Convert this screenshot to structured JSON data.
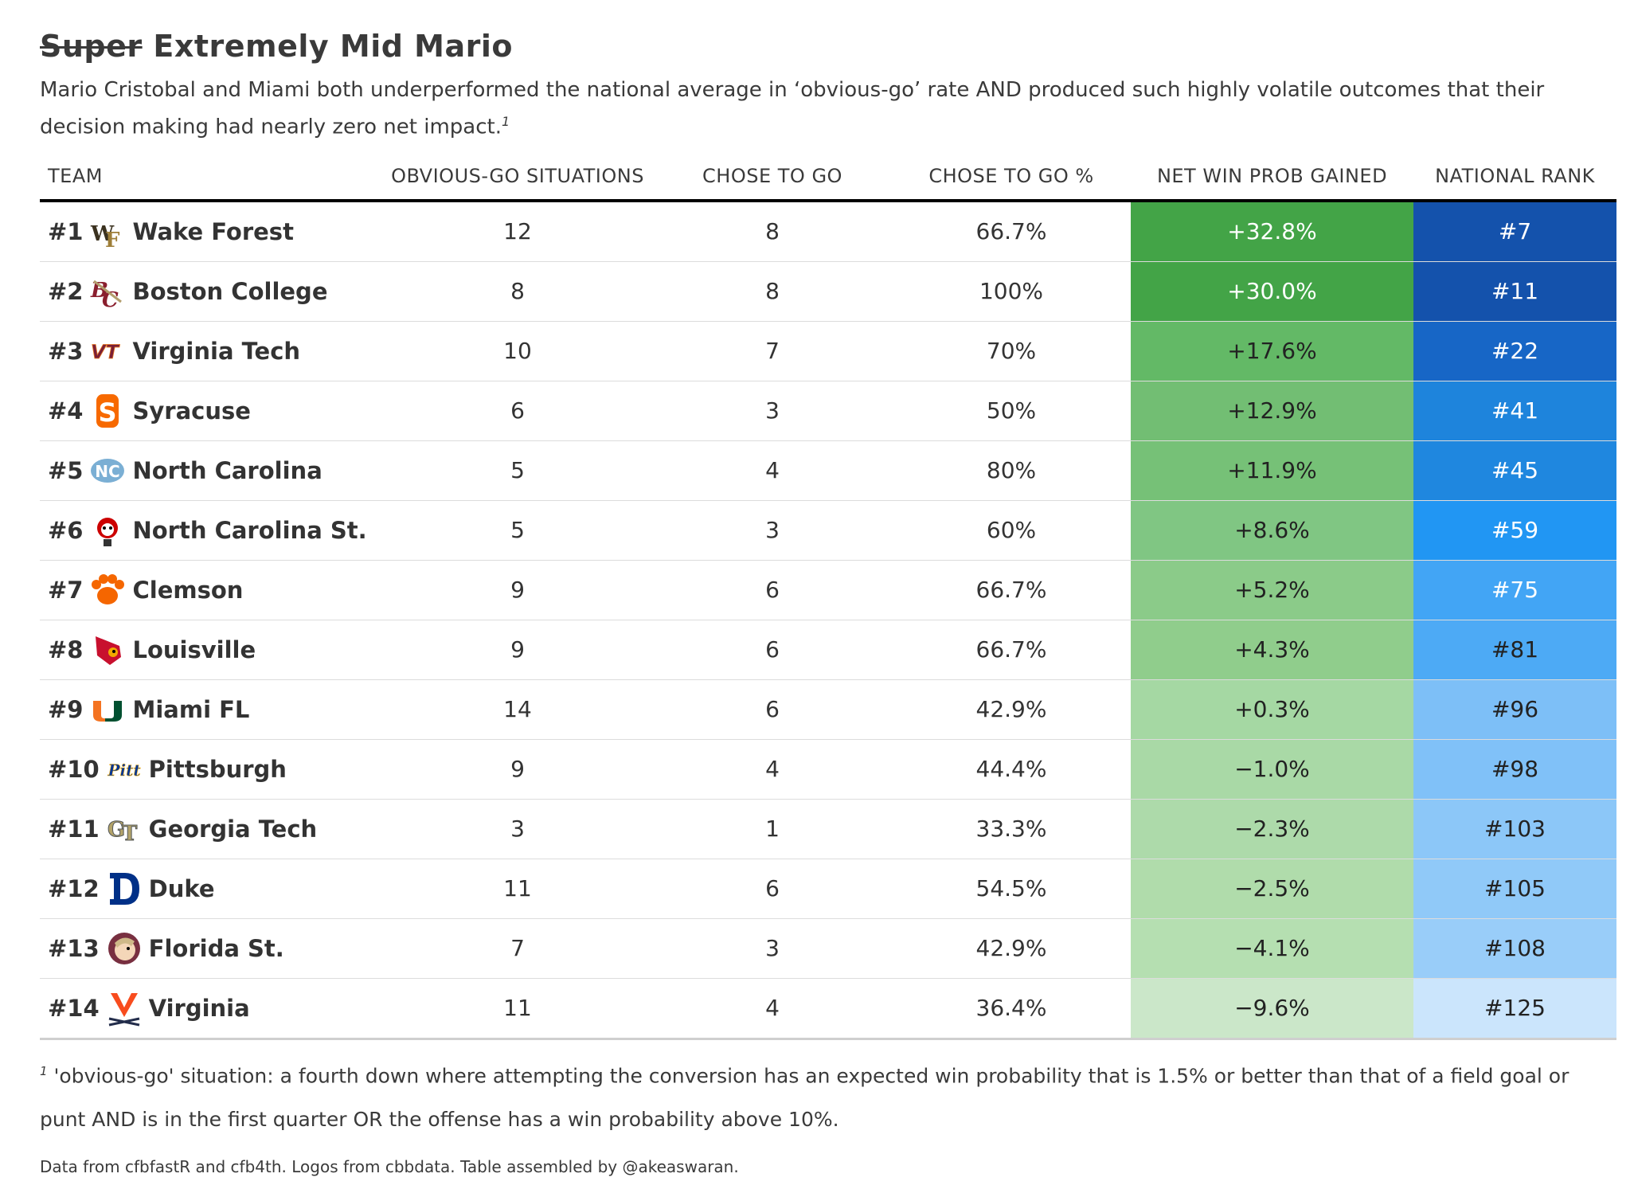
{
  "title": {
    "struck": "Super",
    "main": "Extremely Mid Mario"
  },
  "subtitle": "Mario Cristobal and Miami both underperformed the national average in ‘obvious-go’ rate AND produced such highly volatile outcomes that their decision making had nearly zero net impact.",
  "subtitle_note_mark": "1",
  "chart_data": {
    "type": "table",
    "columns": [
      "TEAM",
      "OBVIOUS-GO SITUATIONS",
      "CHOSE TO GO",
      "CHOSE TO GO %",
      "NET WIN PROB GAINED",
      "NATIONAL RANK"
    ],
    "rows": [
      {
        "rank": "#1",
        "team": "Wake Forest",
        "logo": "wake-forest-logo",
        "situations": "12",
        "went": "8",
        "pct": "66.7%",
        "wp": "+32.8%",
        "wp_value": 32.8,
        "national": "#7",
        "national_value": 7
      },
      {
        "rank": "#2",
        "team": "Boston College",
        "logo": "boston-college-logo",
        "situations": "8",
        "went": "8",
        "pct": "100%",
        "wp": "+30.0%",
        "wp_value": 30.0,
        "national": "#11",
        "national_value": 11
      },
      {
        "rank": "#3",
        "team": "Virginia Tech",
        "logo": "virginia-tech-logo",
        "situations": "10",
        "went": "7",
        "pct": "70%",
        "wp": "+17.6%",
        "wp_value": 17.6,
        "national": "#22",
        "national_value": 22
      },
      {
        "rank": "#4",
        "team": "Syracuse",
        "logo": "syracuse-logo",
        "situations": "6",
        "went": "3",
        "pct": "50%",
        "wp": "+12.9%",
        "wp_value": 12.9,
        "national": "#41",
        "national_value": 41
      },
      {
        "rank": "#5",
        "team": "North Carolina",
        "logo": "north-carolina-logo",
        "situations": "5",
        "went": "4",
        "pct": "80%",
        "wp": "+11.9%",
        "wp_value": 11.9,
        "national": "#45",
        "national_value": 45
      },
      {
        "rank": "#6",
        "team": "North Carolina St.",
        "logo": "nc-state-logo",
        "situations": "5",
        "went": "3",
        "pct": "60%",
        "wp": "+8.6%",
        "wp_value": 8.6,
        "national": "#59",
        "national_value": 59
      },
      {
        "rank": "#7",
        "team": "Clemson",
        "logo": "clemson-logo",
        "situations": "9",
        "went": "6",
        "pct": "66.7%",
        "wp": "+5.2%",
        "wp_value": 5.2,
        "national": "#75",
        "national_value": 75
      },
      {
        "rank": "#8",
        "team": "Louisville",
        "logo": "louisville-logo",
        "situations": "9",
        "went": "6",
        "pct": "66.7%",
        "wp": "+4.3%",
        "wp_value": 4.3,
        "national": "#81",
        "national_value": 81
      },
      {
        "rank": "#9",
        "team": "Miami FL",
        "logo": "miami-logo",
        "situations": "14",
        "went": "6",
        "pct": "42.9%",
        "wp": "+0.3%",
        "wp_value": 0.3,
        "national": "#96",
        "national_value": 96
      },
      {
        "rank": "#10",
        "team": "Pittsburgh",
        "logo": "pitt-logo",
        "situations": "9",
        "went": "4",
        "pct": "44.4%",
        "wp": "−1.0%",
        "wp_value": -1.0,
        "national": "#98",
        "national_value": 98
      },
      {
        "rank": "#11",
        "team": "Georgia Tech",
        "logo": "georgia-tech-logo",
        "situations": "3",
        "went": "1",
        "pct": "33.3%",
        "wp": "−2.3%",
        "wp_value": -2.3,
        "national": "#103",
        "national_value": 103
      },
      {
        "rank": "#12",
        "team": "Duke",
        "logo": "duke-logo",
        "situations": "11",
        "went": "6",
        "pct": "54.5%",
        "wp": "−2.5%",
        "wp_value": -2.5,
        "national": "#105",
        "national_value": 105
      },
      {
        "rank": "#13",
        "team": "Florida St.",
        "logo": "florida-state-logo",
        "situations": "7",
        "went": "3",
        "pct": "42.9%",
        "wp": "−4.1%",
        "wp_value": -4.1,
        "national": "#108",
        "national_value": 108
      },
      {
        "rank": "#14",
        "team": "Virginia",
        "logo": "virginia-logo",
        "situations": "11",
        "went": "4",
        "pct": "36.4%",
        "wp": "−9.6%",
        "wp_value": -9.6,
        "national": "#125",
        "national_value": 125
      }
    ],
    "wp_colors": [
      "#43a447",
      "#43a447",
      "#63b966",
      "#72be73",
      "#76c177",
      "#80c683",
      "#8bcb89",
      "#90cd8c",
      "#a5d8a3",
      "#a9d9a6",
      "#addaaa",
      "#b0dcab",
      "#b5dfb1",
      "#cbe7c9"
    ],
    "rank_colors": [
      "#1452ac",
      "#1452ac",
      "#1766c6",
      "#1e84dc",
      "#1f87df",
      "#2196f3",
      "#42a5f5",
      "#4daaf5",
      "#7dbff7",
      "#80c1f8",
      "#8cc7f8",
      "#90c9f8",
      "#99cdf9",
      "#cbe5fc"
    ],
    "wp_light_text_rows": 2,
    "rank_light_text_rows": 7
  },
  "footnote": {
    "mark": "1",
    "text": "'obvious-go' situation: a fourth down where attempting the conversion has an expected win probability that is 1.5% or better than that of a field goal or punt AND is in the first quarter OR the offense has a win probability above 10%."
  },
  "source": "Data from cfbfastR and cfb4th. Logos from cbbdata. Table assembled by @akeaswaran."
}
